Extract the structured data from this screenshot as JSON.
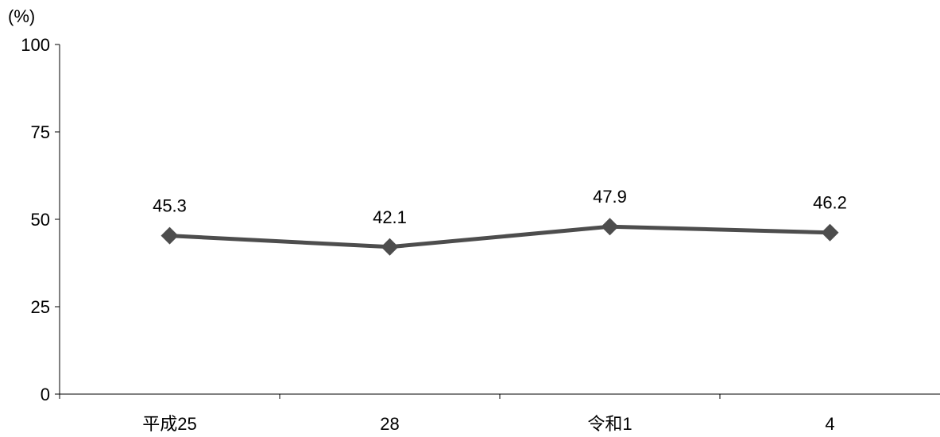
{
  "chart_data": {
    "type": "line",
    "title": "",
    "xlabel": "",
    "ylabel": "",
    "unit_label": "(%)",
    "categories": [
      "平成25",
      "28",
      "令和1",
      "4"
    ],
    "series": [
      {
        "values": [
          45.3,
          42.1,
          47.9,
          46.2
        ],
        "data_labels": [
          "45.3",
          "42.1",
          "47.9",
          "46.2"
        ]
      }
    ],
    "ylim": [
      0,
      100
    ],
    "yticks": [
      0,
      25,
      50,
      75,
      100
    ],
    "ytick_labels": [
      "0",
      "25",
      "50",
      "75",
      "100"
    ],
    "grid": false,
    "legend": "none",
    "marker": "diamond",
    "line_color": "#4d4d4d",
    "axis_color": "#000000"
  }
}
